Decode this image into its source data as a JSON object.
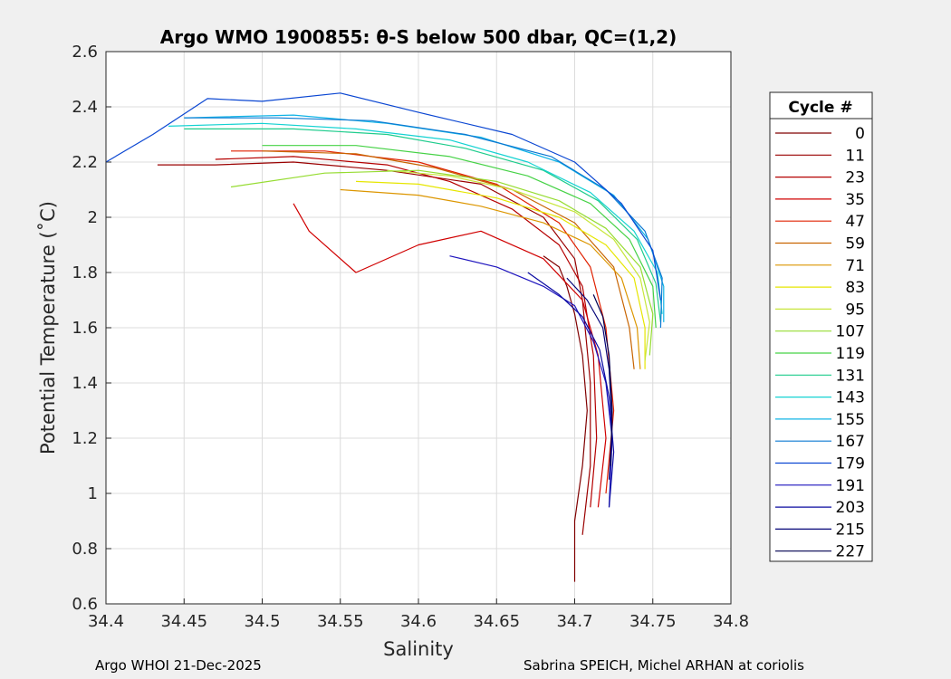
{
  "chart_data": {
    "type": "line",
    "title": "Argo WMO 1900855: θ-S below 500 dbar,  QC=(1,2)",
    "xlabel": "Salinity",
    "ylabel": "Potential Temperature (˚C)",
    "xlim": [
      34.4,
      34.8
    ],
    "ylim": [
      0.6,
      2.6
    ],
    "xticks": [
      34.4,
      34.45,
      34.5,
      34.55,
      34.6,
      34.65,
      34.7,
      34.75,
      34.8
    ],
    "xtick_labels": [
      "34.4",
      "34.45",
      "34.5",
      "34.55",
      "34.6",
      "34.65",
      "34.7",
      "34.75",
      "34.8"
    ],
    "yticks": [
      0.6,
      0.8,
      1,
      1.2,
      1.4,
      1.6,
      1.8,
      2,
      2.2,
      2.4,
      2.6
    ],
    "ytick_labels": [
      "0.6",
      "0.8",
      "1",
      "1.2",
      "1.4",
      "1.6",
      "1.8",
      "2",
      "2.2",
      "2.4",
      "2.6"
    ],
    "grid": true,
    "legend_title": "Cycle #",
    "legend_position": "right outside",
    "series": [
      {
        "name": "0",
        "color": "#800000",
        "points": [
          [
            34.68,
            1.86
          ],
          [
            34.69,
            1.82
          ],
          [
            34.695,
            1.75
          ],
          [
            34.7,
            1.65
          ],
          [
            34.705,
            1.5
          ],
          [
            34.708,
            1.3
          ],
          [
            34.705,
            1.1
          ],
          [
            34.7,
            0.9
          ],
          [
            34.7,
            0.68
          ]
        ]
      },
      {
        "name": "11",
        "color": "#9a0000",
        "points": [
          [
            34.433,
            2.19
          ],
          [
            34.47,
            2.19
          ],
          [
            34.52,
            2.2
          ],
          [
            34.58,
            2.17
          ],
          [
            34.64,
            2.12
          ],
          [
            34.68,
            2.0
          ],
          [
            34.7,
            1.85
          ],
          [
            34.705,
            1.7
          ],
          [
            34.71,
            1.4
          ],
          [
            34.71,
            1.1
          ],
          [
            34.705,
            0.85
          ]
        ]
      },
      {
        "name": "23",
        "color": "#b50000",
        "points": [
          [
            34.47,
            2.21
          ],
          [
            34.52,
            2.22
          ],
          [
            34.58,
            2.19
          ],
          [
            34.62,
            2.13
          ],
          [
            34.66,
            2.03
          ],
          [
            34.69,
            1.9
          ],
          [
            34.705,
            1.75
          ],
          [
            34.712,
            1.5
          ],
          [
            34.714,
            1.2
          ],
          [
            34.71,
            0.95
          ]
        ]
      },
      {
        "name": "35",
        "color": "#d00000",
        "points": [
          [
            34.52,
            2.05
          ],
          [
            34.53,
            1.95
          ],
          [
            34.56,
            1.8
          ],
          [
            34.6,
            1.9
          ],
          [
            34.64,
            1.95
          ],
          [
            34.68,
            1.85
          ],
          [
            34.705,
            1.7
          ],
          [
            34.715,
            1.5
          ],
          [
            34.72,
            1.2
          ],
          [
            34.715,
            0.95
          ]
        ]
      },
      {
        "name": "47",
        "color": "#e02000",
        "points": [
          [
            34.48,
            2.24
          ],
          [
            34.54,
            2.24
          ],
          [
            34.6,
            2.2
          ],
          [
            34.65,
            2.12
          ],
          [
            34.69,
            1.98
          ],
          [
            34.71,
            1.82
          ],
          [
            34.72,
            1.6
          ],
          [
            34.725,
            1.3
          ],
          [
            34.72,
            1.0
          ]
        ]
      },
      {
        "name": "59",
        "color": "#c86400",
        "points": [
          [
            34.5,
            2.24
          ],
          [
            34.56,
            2.23
          ],
          [
            34.61,
            2.18
          ],
          [
            34.66,
            2.1
          ],
          [
            34.7,
            1.98
          ],
          [
            34.725,
            1.82
          ],
          [
            34.735,
            1.6
          ],
          [
            34.738,
            1.45
          ]
        ]
      },
      {
        "name": "71",
        "color": "#dc9600",
        "points": [
          [
            34.55,
            2.1
          ],
          [
            34.6,
            2.08
          ],
          [
            34.64,
            2.04
          ],
          [
            34.68,
            1.98
          ],
          [
            34.71,
            1.9
          ],
          [
            34.73,
            1.78
          ],
          [
            34.74,
            1.6
          ],
          [
            34.742,
            1.45
          ]
        ]
      },
      {
        "name": "83",
        "color": "#e6e600",
        "points": [
          [
            34.56,
            2.13
          ],
          [
            34.6,
            2.12
          ],
          [
            34.65,
            2.07
          ],
          [
            34.69,
            2.0
          ],
          [
            34.72,
            1.9
          ],
          [
            34.738,
            1.78
          ],
          [
            34.745,
            1.6
          ],
          [
            34.745,
            1.45
          ]
        ]
      },
      {
        "name": "95",
        "color": "#c8e63c",
        "points": [
          [
            34.58,
            2.17
          ],
          [
            34.62,
            2.15
          ],
          [
            34.66,
            2.1
          ],
          [
            34.7,
            2.02
          ],
          [
            34.725,
            1.92
          ],
          [
            34.742,
            1.78
          ],
          [
            34.748,
            1.62
          ],
          [
            34.745,
            1.48
          ]
        ]
      },
      {
        "name": "107",
        "color": "#96dc32",
        "points": [
          [
            34.48,
            2.11
          ],
          [
            34.54,
            2.16
          ],
          [
            34.6,
            2.17
          ],
          [
            34.65,
            2.13
          ],
          [
            34.69,
            2.06
          ],
          [
            34.72,
            1.96
          ],
          [
            34.742,
            1.82
          ],
          [
            34.75,
            1.65
          ],
          [
            34.748,
            1.5
          ]
        ]
      },
      {
        "name": "119",
        "color": "#46d246",
        "points": [
          [
            34.5,
            2.26
          ],
          [
            34.56,
            2.26
          ],
          [
            34.62,
            2.22
          ],
          [
            34.67,
            2.15
          ],
          [
            34.71,
            2.05
          ],
          [
            34.735,
            1.92
          ],
          [
            34.75,
            1.75
          ],
          [
            34.752,
            1.6
          ]
        ]
      },
      {
        "name": "131",
        "color": "#1ecc8c",
        "points": [
          [
            34.45,
            2.32
          ],
          [
            34.52,
            2.32
          ],
          [
            34.58,
            2.3
          ],
          [
            34.63,
            2.25
          ],
          [
            34.68,
            2.17
          ],
          [
            34.715,
            2.06
          ],
          [
            34.74,
            1.92
          ],
          [
            34.752,
            1.76
          ],
          [
            34.755,
            1.62
          ]
        ]
      },
      {
        "name": "143",
        "color": "#14d2d2",
        "points": [
          [
            34.44,
            2.33
          ],
          [
            34.5,
            2.34
          ],
          [
            34.56,
            2.32
          ],
          [
            34.62,
            2.28
          ],
          [
            34.67,
            2.2
          ],
          [
            34.71,
            2.09
          ],
          [
            34.738,
            1.95
          ],
          [
            34.753,
            1.8
          ],
          [
            34.756,
            1.65
          ]
        ]
      },
      {
        "name": "155",
        "color": "#10b4e6",
        "points": [
          [
            34.45,
            2.36
          ],
          [
            34.52,
            2.37
          ],
          [
            34.58,
            2.34
          ],
          [
            34.64,
            2.29
          ],
          [
            34.69,
            2.2
          ],
          [
            34.725,
            2.08
          ],
          [
            34.747,
            1.92
          ],
          [
            34.757,
            1.75
          ],
          [
            34.757,
            1.62
          ]
        ]
      },
      {
        "name": "167",
        "color": "#0a78d2",
        "points": [
          [
            34.45,
            2.36
          ],
          [
            34.51,
            2.36
          ],
          [
            34.57,
            2.35
          ],
          [
            34.63,
            2.3
          ],
          [
            34.685,
            2.22
          ],
          [
            34.72,
            2.1
          ],
          [
            34.745,
            1.95
          ],
          [
            34.756,
            1.78
          ],
          [
            34.755,
            1.6
          ]
        ]
      },
      {
        "name": "179",
        "color": "#0a46d2",
        "points": [
          [
            34.4,
            2.2
          ],
          [
            34.43,
            2.3
          ],
          [
            34.465,
            2.43
          ],
          [
            34.5,
            2.42
          ],
          [
            34.55,
            2.45
          ],
          [
            34.6,
            2.38
          ],
          [
            34.66,
            2.3
          ],
          [
            34.7,
            2.2
          ],
          [
            34.73,
            2.05
          ],
          [
            34.75,
            1.88
          ],
          [
            34.755,
            1.7
          ]
        ]
      },
      {
        "name": "191",
        "color": "#1e14be",
        "points": [
          [
            34.62,
            1.86
          ],
          [
            34.65,
            1.82
          ],
          [
            34.68,
            1.75
          ],
          [
            34.7,
            1.68
          ],
          [
            34.712,
            1.55
          ],
          [
            34.72,
            1.4
          ],
          [
            34.724,
            1.2
          ],
          [
            34.722,
            0.95
          ]
        ]
      },
      {
        "name": "203",
        "color": "#0a0aa0",
        "points": [
          [
            34.67,
            1.8
          ],
          [
            34.69,
            1.72
          ],
          [
            34.705,
            1.64
          ],
          [
            34.716,
            1.52
          ],
          [
            34.722,
            1.35
          ],
          [
            34.725,
            1.15
          ],
          [
            34.722,
            0.95
          ]
        ]
      },
      {
        "name": "215",
        "color": "#050578",
        "points": [
          [
            34.695,
            1.78
          ],
          [
            34.708,
            1.7
          ],
          [
            34.718,
            1.6
          ],
          [
            34.722,
            1.45
          ],
          [
            34.724,
            1.25
          ],
          [
            34.722,
            1.05
          ]
        ]
      },
      {
        "name": "227",
        "color": "#000050",
        "points": [
          [
            34.712,
            1.72
          ],
          [
            34.718,
            1.64
          ],
          [
            34.722,
            1.5
          ],
          [
            34.724,
            1.3
          ],
          [
            34.723,
            1.1
          ]
        ]
      }
    ]
  },
  "footer": {
    "left": "Argo WHOI 21-Dec-2025",
    "right": "Sabrina SPEICH, Michel ARHAN at coriolis"
  }
}
